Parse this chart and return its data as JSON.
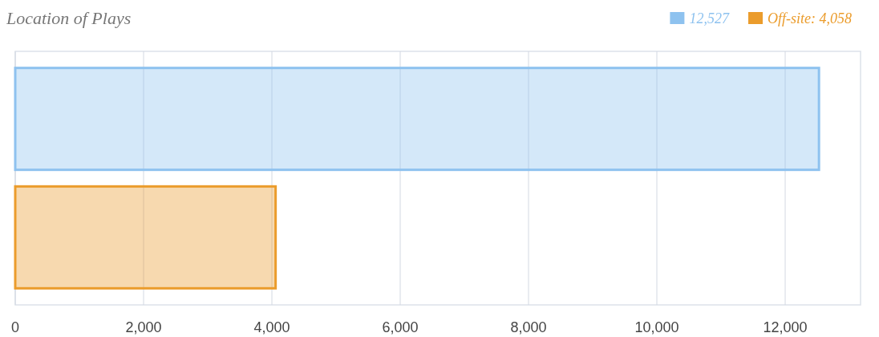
{
  "chart_data": {
    "type": "bar",
    "orientation": "horizontal",
    "title": "Location of Plays",
    "categories": [
      null,
      null
    ],
    "series": [
      {
        "name": "12,527",
        "color": "#8ec2ef",
        "values": [
          12527,
          null
        ]
      },
      {
        "name": "Off-site: 4,058",
        "color": "#eb9c2c",
        "values": [
          null,
          4058
        ]
      }
    ],
    "xlim": [
      0,
      13175
    ],
    "xticks": [
      0,
      {
        "value": 2000,
        "label": "2,000"
      },
      {
        "value": 4000,
        "label": "4,000"
      },
      {
        "value": 6000,
        "label": "6,000"
      },
      {
        "value": 8000,
        "label": "8,000"
      },
      {
        "value": 10000,
        "label": "10,000"
      },
      {
        "value": 12000,
        "label": "12,000"
      }
    ],
    "grid": "x",
    "legend": "top right"
  }
}
